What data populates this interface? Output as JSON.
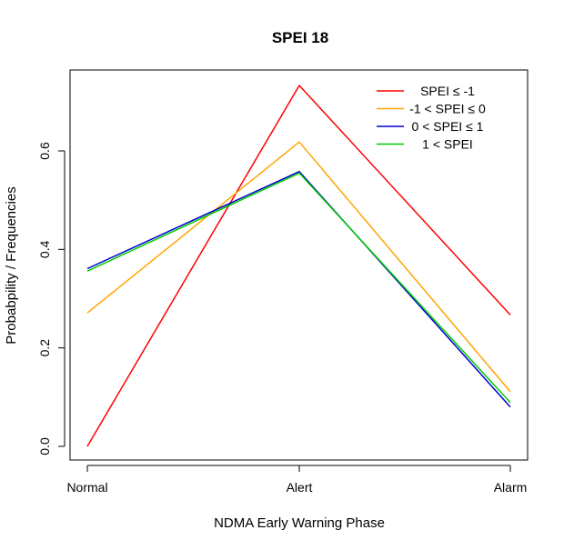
{
  "chart_data": {
    "type": "line",
    "title": "SPEI 18",
    "xlabel": "NDMA Early Warning Phase",
    "ylabel": "Probabpility / Frequencies",
    "categories": [
      "Normal",
      "Alert",
      "Alarm"
    ],
    "ylim": [
      -0.02,
      0.76
    ],
    "yticks": [
      0.0,
      0.2,
      0.4,
      0.6
    ],
    "ytick_labels": [
      "0.0",
      "0.2",
      "0.4",
      "0.6"
    ],
    "grid": false,
    "legend_position": "top-right",
    "series": [
      {
        "name": "SPEI ≤ -1",
        "color": "#ff0000",
        "values": [
          0.0,
          0.733,
          0.267
        ]
      },
      {
        "name": "-1 < SPEI ≤ 0",
        "color": "#ffa500",
        "values": [
          0.271,
          0.618,
          0.111
        ]
      },
      {
        "name": "0 < SPEI ≤ 1",
        "color": "#0000cd",
        "values": [
          0.361,
          0.558,
          0.08
        ]
      },
      {
        "name": "1 < SPEI",
        "color": "#00cd00",
        "values": [
          0.356,
          0.555,
          0.089
        ]
      }
    ]
  }
}
